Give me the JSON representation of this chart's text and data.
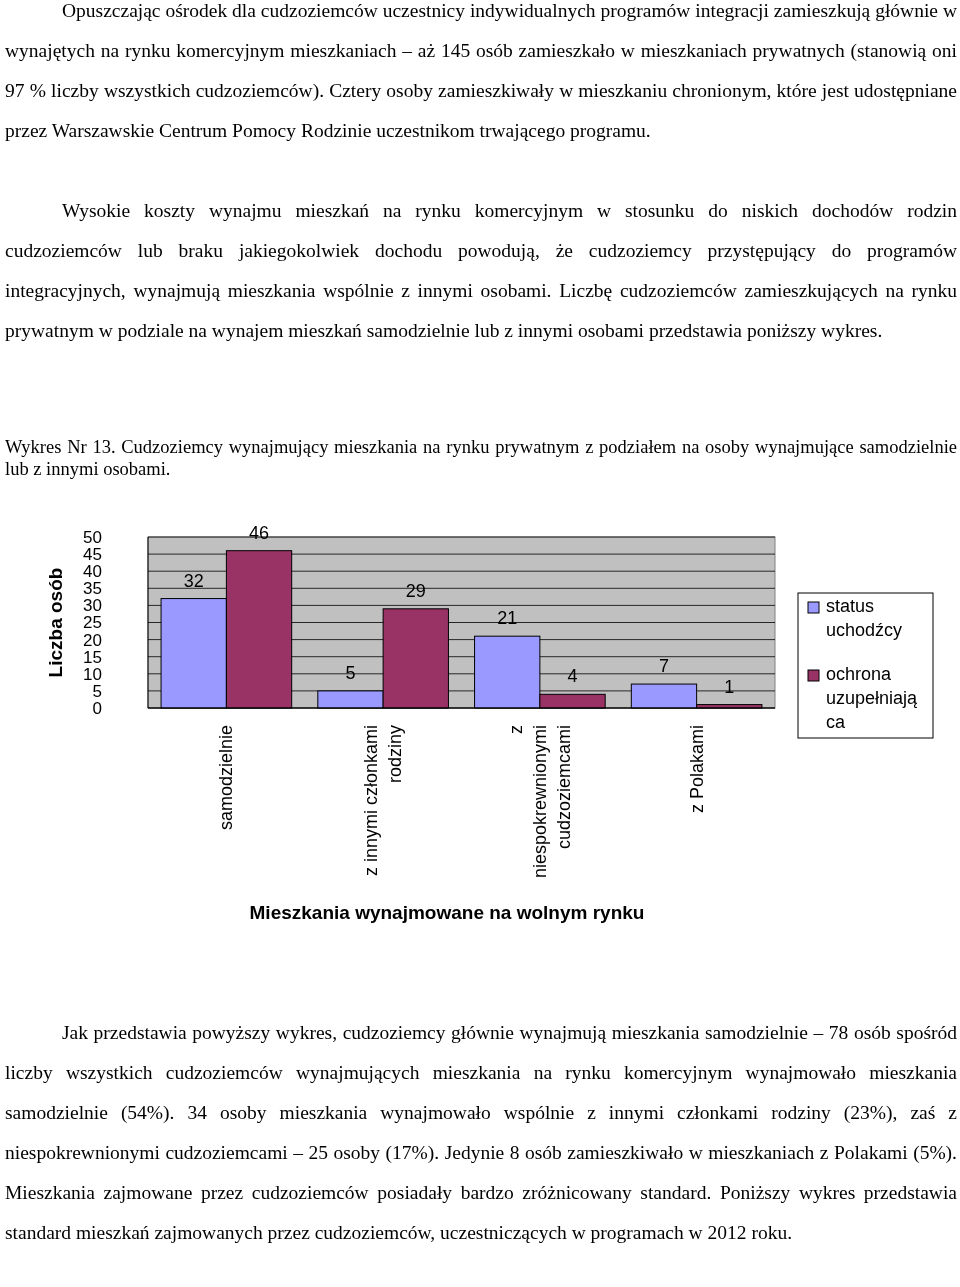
{
  "chart_data": {
    "type": "bar",
    "title": "Wykres Nr 13. Cudzoziemcy wynajmujący mieszkania na rynku prywatnym z podziałem na osoby wynajmujące samodzielnie lub z innymi osobami.",
    "xlabel": "Mieszkania wynajmowane na wolnym rynku",
    "ylabel": "Liczba osób",
    "categories": [
      "samodzielnie",
      "z innymi członkami rodziny",
      "z niespokrewnionymi cudzoziemcami",
      "z Polakami"
    ],
    "series": [
      {
        "name": "status uchodźcy",
        "color": "#9999ff",
        "values": [
          32,
          5,
          21,
          7
        ]
      },
      {
        "name": "ochrona uzupełniająca",
        "color": "#993366",
        "values": [
          46,
          29,
          4,
          1
        ]
      }
    ],
    "ylim": [
      0,
      50
    ],
    "yticks": [
      0,
      5,
      10,
      15,
      20,
      25,
      30,
      35,
      40,
      45,
      50
    ],
    "grid": "y",
    "legend": "right",
    "data_labels": true,
    "annotations": [
      "Opuszczając ośrodek dla cudzoziemców uczestnicy indywidualnych programów integracji zamieszkują głównie w wynajętych na rynku komercyjnym mieszkaniach – aż 145 osób zamieszkało w mieszkaniach prywatnych (stanowią oni 97 % liczby wszystkich cudzoziemców). Cztery osoby zamieszkiwały w mieszkaniu chronionym, które jest udostępniane przez Warszawskie Centrum Pomocy Rodzinie uczestnikom trwającego programu.",
      "Wysokie koszty wynajmu mieszkań na rynku komercyjnym w stosunku do niskich dochodów rodzin cudzoziemców lub braku jakiegokolwiek dochodu powodują, że cudzoziemcy przystępujący do programów integracyjnych, wynajmują mieszkania wspólnie z innymi osobami. Liczbę cudzoziemców zamieszkujących na rynku prywatnym w podziale na wynajem mieszkań samodzielnie lub z innymi osobami przedstawia poniższy wykres.",
      "Jak przedstawia powyższy wykres, cudzoziemcy głównie wynajmują mieszkania samodzielnie – 78 osób spośród liczby wszystkich cudzoziemców wynajmujących mieszkania na rynku komercyjnym wynajmowało mieszkania samodzielnie (54%). 34 osoby mieszkania wynajmowało wspólnie z innymi członkami rodziny (23%), zaś z niespokrewnionymi cudzoziemcami – 25 osoby (17%). Jedynie 8 osób zamieszkiwało w mieszkaniach z Polakami (5%). Mieszkania zajmowane przez cudzoziemców posiadały bardzo zróżnicowany standard. Poniższy wykres przedstawia standard mieszkań zajmowanych przez cudzoziemców, uczestniczących w programach w 2012 roku."
    ]
  }
}
